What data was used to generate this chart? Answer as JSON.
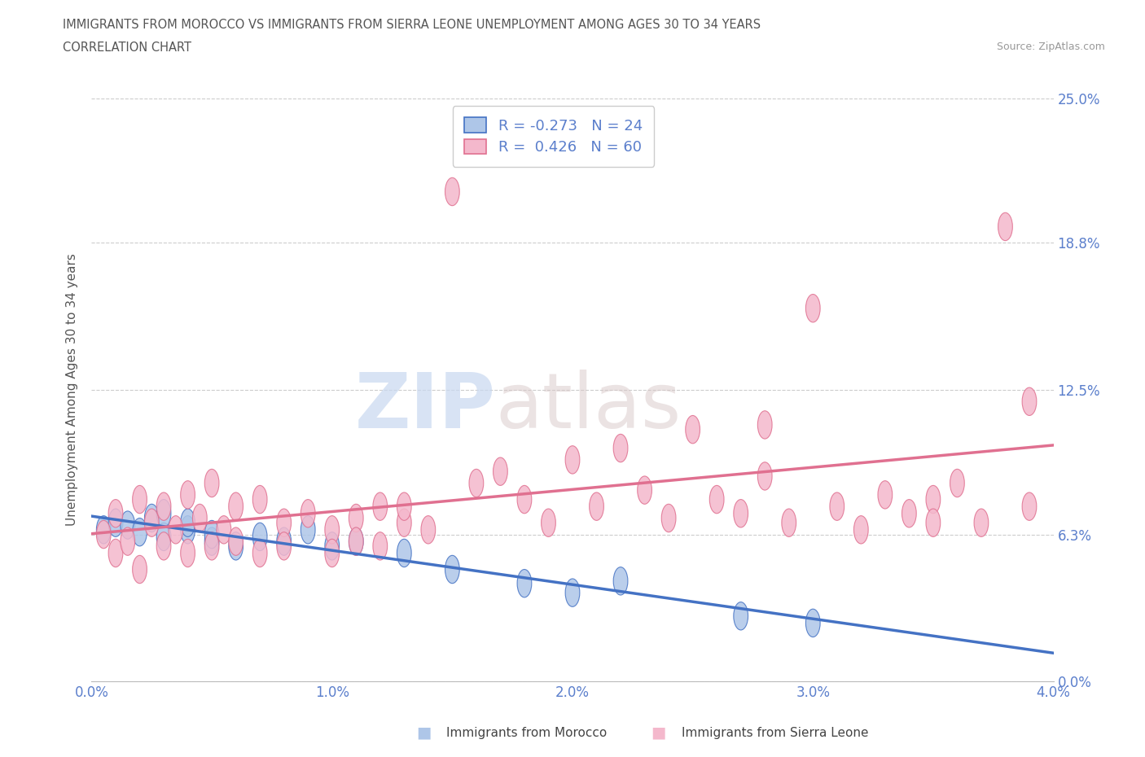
{
  "title_line1": "IMMIGRANTS FROM MOROCCO VS IMMIGRANTS FROM SIERRA LEONE UNEMPLOYMENT AMONG AGES 30 TO 34 YEARS",
  "title_line2": "CORRELATION CHART",
  "source_text": "Source: ZipAtlas.com",
  "ylabel": "Unemployment Among Ages 30 to 34 years",
  "xlim": [
    0.0,
    0.04
  ],
  "ylim": [
    0.0,
    0.25
  ],
  "ytick_positions": [
    0.0,
    0.063,
    0.125,
    0.188,
    0.25
  ],
  "ytick_labels": [
    "0.0%",
    "6.3%",
    "12.5%",
    "18.8%",
    "25.0%"
  ],
  "xtick_positions": [
    0.0,
    0.01,
    0.02,
    0.03,
    0.04
  ],
  "xtick_labels": [
    "0.0%",
    "1.0%",
    "2.0%",
    "3.0%",
    "4.0%"
  ],
  "morocco_color": "#aec6e8",
  "morocco_line_color": "#4472c4",
  "sierra_leone_color": "#f4b8cc",
  "sierra_leone_line_color": "#e07090",
  "morocco_R": -0.273,
  "morocco_N": 24,
  "sierra_leone_R": 0.426,
  "sierra_leone_N": 60,
  "legend_label_morocco": "Immigrants from Morocco",
  "legend_label_sierra": "Immigrants from Sierra Leone",
  "watermark_zip": "ZIP",
  "watermark_atlas": "atlas",
  "background_color": "#ffffff",
  "grid_color": "#cccccc",
  "right_label_color": "#5b7fcc",
  "title_color": "#555555",
  "bottom_legend_color": "#444444"
}
